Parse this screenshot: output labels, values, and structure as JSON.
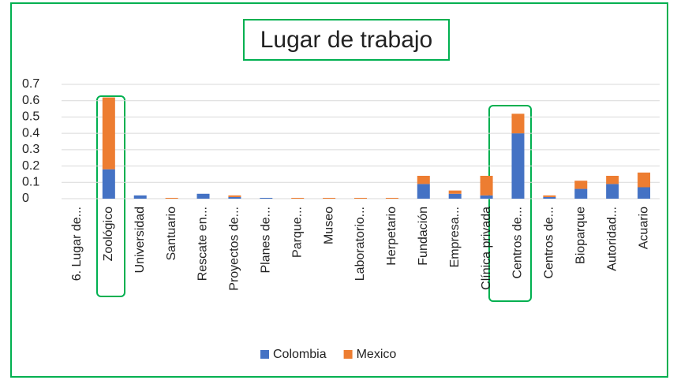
{
  "chart_data": {
    "type": "stacked_bar",
    "title": "Lugar de trabajo",
    "categories": [
      "6. Lugar de...",
      "Zoológico",
      "Universidad",
      "Santuario",
      "Rescate en...",
      "Proyectos de...",
      "Planes de...",
      "Parque...",
      "Museo",
      "Laboratorio...",
      "Herpetario",
      "Fundación",
      "Empresa...",
      "Clínica privada",
      "Centros de...",
      "Centros de...",
      "Bioparque",
      "Autoridad...",
      "Acuario"
    ],
    "series": [
      {
        "name": "Colombia",
        "color": "#4472c4",
        "values": [
          0,
          0.18,
          0.02,
          0,
          0.03,
          0.01,
          0.005,
          0,
          0,
          0,
          0,
          0.09,
          0.03,
          0.02,
          0.4,
          0.01,
          0.06,
          0.09,
          0.07
        ]
      },
      {
        "name": "Mexico",
        "color": "#ed7d31",
        "values": [
          0,
          0.44,
          0,
          0.005,
          0,
          0.01,
          0,
          0.005,
          0.005,
          0.005,
          0.005,
          0.05,
          0.02,
          0.12,
          0.12,
          0.01,
          0.05,
          0.05,
          0.09
        ]
      }
    ],
    "ylim": [
      0,
      0.7
    ],
    "yticks": [
      0,
      0.1,
      0.2,
      0.3,
      0.4,
      0.5,
      0.6,
      0.7
    ],
    "grid": true,
    "legend": "bottom"
  }
}
